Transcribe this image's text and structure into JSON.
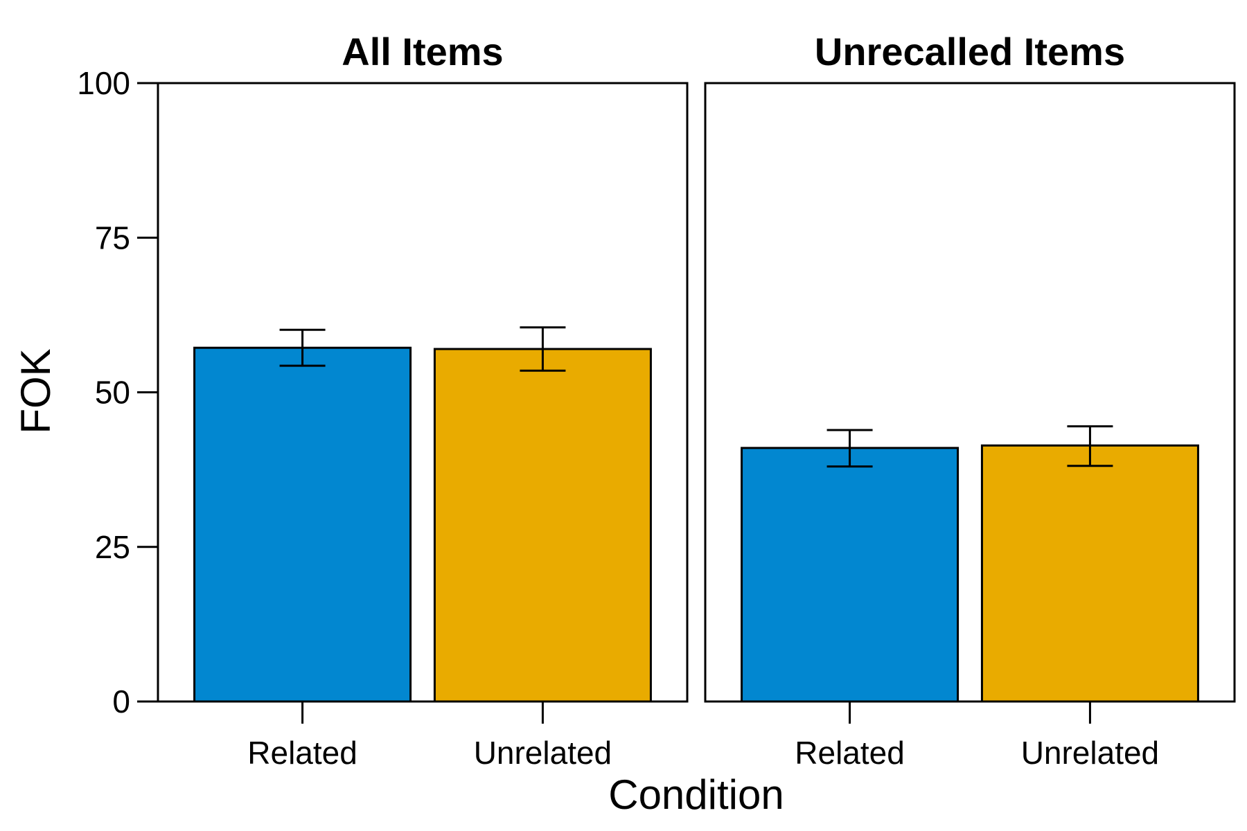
{
  "chart_data": {
    "type": "bar",
    "xlabel": "Condition",
    "ylabel": "FOK",
    "ylim": [
      0,
      100
    ],
    "yticks": [
      0,
      25,
      50,
      75,
      100
    ],
    "grid": false,
    "colors": {
      "Related": "#0287D0",
      "Unrelated": "#E9AB00"
    },
    "panels": [
      {
        "title": "All Items",
        "categories": [
          "Related",
          "Unrelated"
        ],
        "values": [
          57.2,
          57.0
        ],
        "error_low": [
          54.3,
          53.5
        ],
        "error_high": [
          60.1,
          60.5
        ]
      },
      {
        "title": "Unrecalled Items",
        "categories": [
          "Related",
          "Unrelated"
        ],
        "values": [
          41.0,
          41.4
        ],
        "error_low": [
          38.0,
          38.1
        ],
        "error_high": [
          43.9,
          44.5
        ]
      }
    ]
  }
}
